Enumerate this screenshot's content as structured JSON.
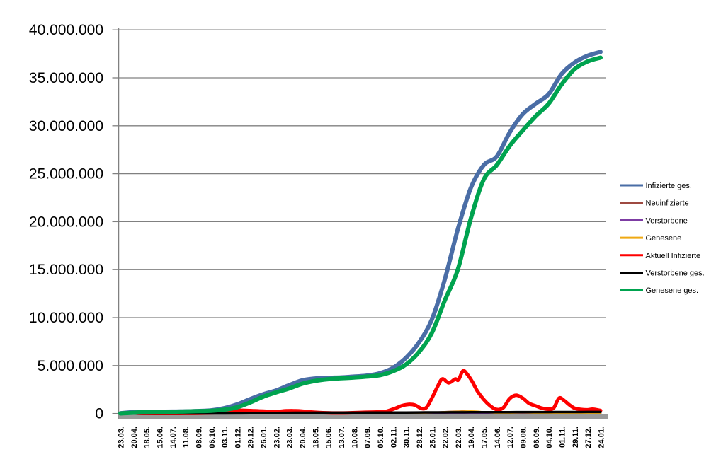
{
  "chart_data": {
    "type": "line",
    "title": "",
    "xlabel": "",
    "ylabel": "",
    "ylim": [
      0,
      40000000
    ],
    "grid": "horizontal-only",
    "legend_position": "right-middle",
    "y_ticks": {
      "values": [
        0,
        5000000,
        10000000,
        15000000,
        20000000,
        25000000,
        30000000,
        35000000,
        40000000
      ],
      "labels": [
        "0",
        "5.000.000",
        "10.000.000",
        "15.000.000",
        "20.000.000",
        "25.000.000",
        "30.000.000",
        "35.000.000",
        "40.000.000"
      ]
    },
    "x_tick_labels": [
      "23.03.",
      "20.04.",
      "18.05.",
      "15.06.",
      "14.07.",
      "11.08.",
      "08.09.",
      "06.10.",
      "03.11.",
      "01.12.",
      "29.12.",
      "26.01.",
      "23.02.",
      "23.03.",
      "20.04.",
      "18.05.",
      "15.06.",
      "13.07.",
      "10.08.",
      "07.09.",
      "05.10.",
      "02.11.",
      "30.11.",
      "28.12.",
      "25.01.",
      "22.02.",
      "22.03.",
      "19.04.",
      "17.05.",
      "14.06.",
      "12.07.",
      "09.08.",
      "06.09.",
      "04.10.",
      "01.11.",
      "29.11.",
      "27.12.",
      "24.01."
    ],
    "series": [
      {
        "name": "Infizierte ges.",
        "color": "#4a6da6",
        "width": 6,
        "points": [
          [
            0,
            30000
          ],
          [
            1,
            150000
          ],
          [
            2,
            178000
          ],
          [
            3,
            188000
          ],
          [
            4,
            200000
          ],
          [
            5,
            220000
          ],
          [
            6,
            260000
          ],
          [
            7,
            330000
          ],
          [
            8,
            550000
          ],
          [
            9,
            950000
          ],
          [
            10,
            1500000
          ],
          [
            11,
            2000000
          ],
          [
            12,
            2400000
          ],
          [
            13,
            2950000
          ],
          [
            14,
            3450000
          ],
          [
            15,
            3650000
          ],
          [
            16,
            3720000
          ],
          [
            17,
            3760000
          ],
          [
            18,
            3850000
          ],
          [
            19,
            3950000
          ],
          [
            20,
            4200000
          ],
          [
            21,
            4750000
          ],
          [
            22,
            5800000
          ],
          [
            23,
            7400000
          ],
          [
            24,
            9800000
          ],
          [
            25,
            14000000
          ],
          [
            26,
            19200000
          ],
          [
            27,
            23500000
          ],
          [
            28,
            25900000
          ],
          [
            29,
            26800000
          ],
          [
            30,
            29300000
          ],
          [
            31,
            31200000
          ],
          [
            32,
            32300000
          ],
          [
            33,
            33300000
          ],
          [
            34,
            35400000
          ],
          [
            35,
            36600000
          ],
          [
            36,
            37300000
          ],
          [
            37,
            37700000
          ]
        ]
      },
      {
        "name": "Neuinfizierte",
        "color": "#9e4a41",
        "width": 2.5,
        "points": [
          [
            0,
            5000
          ],
          [
            2,
            3000
          ],
          [
            4,
            2000
          ],
          [
            6,
            8000
          ],
          [
            8,
            20000
          ],
          [
            9,
            25000
          ],
          [
            10,
            22000
          ],
          [
            11,
            15000
          ],
          [
            12,
            10000
          ],
          [
            13,
            14000
          ],
          [
            14,
            13000
          ],
          [
            15,
            6000
          ],
          [
            16,
            3000
          ],
          [
            17,
            5000
          ],
          [
            18,
            8000
          ],
          [
            19,
            10000
          ],
          [
            20,
            12000
          ],
          [
            21,
            30000
          ],
          [
            22,
            50000
          ],
          [
            23,
            40000
          ],
          [
            24,
            100000
          ],
          [
            25,
            180000
          ],
          [
            26,
            230000
          ],
          [
            26.5,
            250000
          ],
          [
            27,
            200000
          ],
          [
            28,
            100000
          ],
          [
            29,
            40000
          ],
          [
            30,
            90000
          ],
          [
            31,
            80000
          ],
          [
            32,
            50000
          ],
          [
            33,
            40000
          ],
          [
            34,
            80000
          ],
          [
            35,
            45000
          ],
          [
            36,
            30000
          ],
          [
            37,
            25000
          ]
        ]
      },
      {
        "name": "Verstorbene",
        "color": "#7d3ca3",
        "width": 2.5,
        "points": [
          [
            0,
            500
          ],
          [
            2,
            1200
          ],
          [
            4,
            400
          ],
          [
            6,
            300
          ],
          [
            8,
            1500
          ],
          [
            10,
            5000
          ],
          [
            11,
            5500
          ],
          [
            12,
            3500
          ],
          [
            14,
            1500
          ],
          [
            16,
            800
          ],
          [
            18,
            500
          ],
          [
            20,
            800
          ],
          [
            22,
            2500
          ],
          [
            23,
            3000
          ],
          [
            24,
            2000
          ],
          [
            26,
            1800
          ],
          [
            28,
            1500
          ],
          [
            30,
            1000
          ],
          [
            32,
            1000
          ],
          [
            34,
            1200
          ],
          [
            36,
            1500
          ],
          [
            37,
            1200
          ]
        ]
      },
      {
        "name": "Genesene",
        "color": "#efa913",
        "width": 2.5,
        "points": [
          [
            0,
            2000
          ],
          [
            2,
            4000
          ],
          [
            4,
            3000
          ],
          [
            6,
            7000
          ],
          [
            8,
            15000
          ],
          [
            9,
            22000
          ],
          [
            10,
            25000
          ],
          [
            11,
            18000
          ],
          [
            12,
            12000
          ],
          [
            13,
            14000
          ],
          [
            14,
            15000
          ],
          [
            15,
            8000
          ],
          [
            16,
            4000
          ],
          [
            17,
            4000
          ],
          [
            18,
            7000
          ],
          [
            19,
            9000
          ],
          [
            20,
            11000
          ],
          [
            21,
            20000
          ],
          [
            22,
            40000
          ],
          [
            23,
            50000
          ],
          [
            24,
            90000
          ],
          [
            25,
            160000
          ],
          [
            26,
            210000
          ],
          [
            27,
            240000
          ],
          [
            27.5,
            220000
          ],
          [
            28,
            150000
          ],
          [
            29,
            60000
          ],
          [
            30,
            70000
          ],
          [
            31,
            90000
          ],
          [
            32,
            65000
          ],
          [
            33,
            45000
          ],
          [
            34,
            60000
          ],
          [
            35,
            60000
          ],
          [
            36,
            35000
          ],
          [
            37,
            30000
          ]
        ]
      },
      {
        "name": "Aktuell Infizierte",
        "color": "#fe0000",
        "width": 5,
        "points": [
          [
            0,
            30000
          ],
          [
            0.4,
            60000
          ],
          [
            1,
            50000
          ],
          [
            1.5,
            30000
          ],
          [
            2,
            15000
          ],
          [
            3,
            8000
          ],
          [
            4,
            6000
          ],
          [
            5,
            12000
          ],
          [
            6,
            25000
          ],
          [
            7,
            60000
          ],
          [
            8,
            180000
          ],
          [
            8.7,
            300000
          ],
          [
            9.4,
            330000
          ],
          [
            10,
            300000
          ],
          [
            11,
            240000
          ],
          [
            12,
            210000
          ],
          [
            12.8,
            280000
          ],
          [
            13.5,
            285000
          ],
          [
            14,
            250000
          ],
          [
            14.8,
            150000
          ],
          [
            15.6,
            80000
          ],
          [
            16.5,
            50000
          ],
          [
            17.5,
            70000
          ],
          [
            18.5,
            110000
          ],
          [
            19.5,
            150000
          ],
          [
            20.3,
            180000
          ],
          [
            21,
            450000
          ],
          [
            21.7,
            820000
          ],
          [
            22.2,
            950000
          ],
          [
            22.7,
            880000
          ],
          [
            23.2,
            520000
          ],
          [
            23.6,
            650000
          ],
          [
            24,
            1600000
          ],
          [
            24.4,
            2700000
          ],
          [
            24.8,
            3600000
          ],
          [
            25.3,
            3200000
          ],
          [
            25.8,
            3600000
          ],
          [
            26.05,
            3500000
          ],
          [
            26.4,
            4450000
          ],
          [
            26.75,
            4050000
          ],
          [
            27.1,
            3350000
          ],
          [
            27.5,
            2350000
          ],
          [
            28,
            1450000
          ],
          [
            28.5,
            800000
          ],
          [
            29,
            420000
          ],
          [
            29.5,
            600000
          ],
          [
            30,
            1550000
          ],
          [
            30.5,
            1900000
          ],
          [
            31,
            1600000
          ],
          [
            31.5,
            1050000
          ],
          [
            32,
            800000
          ],
          [
            32.5,
            550000
          ],
          [
            33,
            450000
          ],
          [
            33.4,
            600000
          ],
          [
            33.8,
            1600000
          ],
          [
            34.2,
            1350000
          ],
          [
            34.6,
            900000
          ],
          [
            35,
            550000
          ],
          [
            35.5,
            420000
          ],
          [
            36,
            380000
          ],
          [
            36.4,
            450000
          ],
          [
            37,
            320000
          ]
        ]
      },
      {
        "name": "Verstorbene ges.",
        "color": "#000000",
        "width": 3.5,
        "points": [
          [
            0,
            500
          ],
          [
            1,
            4500
          ],
          [
            2,
            8000
          ],
          [
            3,
            8800
          ],
          [
            4,
            9100
          ],
          [
            5,
            9200
          ],
          [
            6,
            9350
          ],
          [
            7,
            9600
          ],
          [
            8,
            11000
          ],
          [
            9,
            17000
          ],
          [
            10,
            33000
          ],
          [
            11,
            54000
          ],
          [
            12,
            69000
          ],
          [
            13,
            75000
          ],
          [
            14,
            81000
          ],
          [
            15,
            87000
          ],
          [
            16,
            90000
          ],
          [
            17,
            91000
          ],
          [
            18,
            92000
          ],
          [
            19,
            92500
          ],
          [
            20,
            94000
          ],
          [
            21,
            96000
          ],
          [
            22,
            101000
          ],
          [
            23,
            111000
          ],
          [
            24,
            117000
          ],
          [
            25,
            121000
          ],
          [
            26,
            126000
          ],
          [
            27,
            132000
          ],
          [
            28,
            138000
          ],
          [
            29,
            140000
          ],
          [
            30,
            142000
          ],
          [
            31,
            145000
          ],
          [
            32,
            147000
          ],
          [
            33,
            150000
          ],
          [
            34,
            153000
          ],
          [
            35,
            157000
          ],
          [
            36,
            161000
          ],
          [
            37,
            165000
          ]
        ]
      },
      {
        "name": "Genesene ges.",
        "color": "#00a34f",
        "width": 6,
        "points": [
          [
            0,
            10000
          ],
          [
            1,
            80000
          ],
          [
            2,
            160000
          ],
          [
            3,
            180000
          ],
          [
            4,
            190000
          ],
          [
            5,
            210000
          ],
          [
            6,
            240000
          ],
          [
            7,
            290000
          ],
          [
            8,
            400000
          ],
          [
            9,
            650000
          ],
          [
            10,
            1150000
          ],
          [
            11,
            1750000
          ],
          [
            12,
            2200000
          ],
          [
            13,
            2600000
          ],
          [
            14,
            3100000
          ],
          [
            15,
            3400000
          ],
          [
            16,
            3580000
          ],
          [
            17,
            3670000
          ],
          [
            18,
            3750000
          ],
          [
            19,
            3850000
          ],
          [
            20,
            4000000
          ],
          [
            21,
            4400000
          ],
          [
            22,
            5100000
          ],
          [
            23,
            6400000
          ],
          [
            24,
            8400000
          ],
          [
            25,
            11800000
          ],
          [
            26,
            15000000
          ],
          [
            27,
            20300000
          ],
          [
            28,
            24400000
          ],
          [
            29,
            25900000
          ],
          [
            30,
            27900000
          ],
          [
            31,
            29500000
          ],
          [
            32,
            31000000
          ],
          [
            33,
            32300000
          ],
          [
            34,
            34300000
          ],
          [
            35,
            35900000
          ],
          [
            36,
            36700000
          ],
          [
            37,
            37100000
          ]
        ]
      }
    ],
    "style": {
      "background": "#ffffff",
      "gridline_color": "#808080",
      "axis_line_color": "#808080",
      "x_axis_bar_color": "#9a9a9a",
      "label_color": "#000000",
      "y_label_font_px": 21,
      "x_label_font_px": 11,
      "legend_font_px": 11
    }
  }
}
